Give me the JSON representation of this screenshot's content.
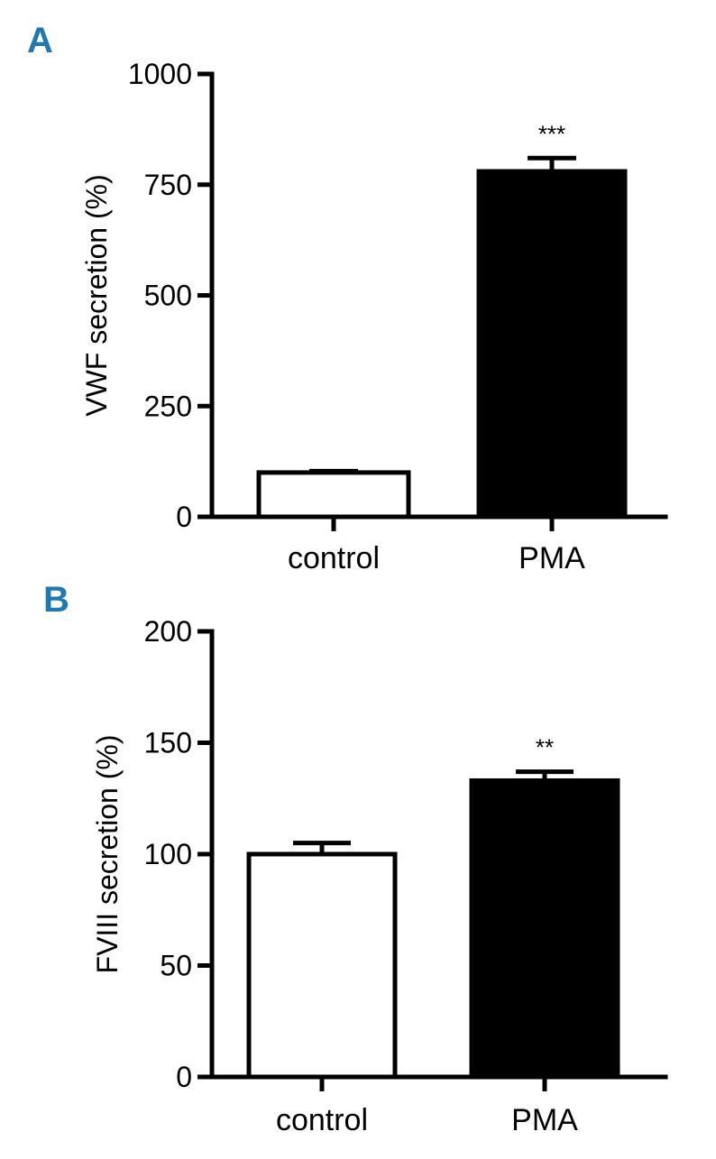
{
  "colors": {
    "panel_letter": "#1f77b4",
    "axis": "#000000",
    "control_fill": "#ffffff",
    "pma_fill": "#000000"
  },
  "chart_data": [
    {
      "panel": "A",
      "type": "bar",
      "title": "",
      "ylabel": "VWF secretion (%)",
      "xlabel": "",
      "categories": [
        "control",
        "PMA"
      ],
      "values": [
        100,
        780
      ],
      "errors": [
        3,
        30
      ],
      "significance": [
        "",
        "***"
      ],
      "fills": [
        "#ffffff",
        "#000000"
      ],
      "ylim": [
        0,
        1000
      ],
      "yticks": [
        0,
        250,
        500,
        750,
        1000
      ],
      "ytick_labels": [
        "0",
        "250",
        "500",
        "750",
        "1000"
      ],
      "grid": false
    },
    {
      "panel": "B",
      "type": "bar",
      "title": "",
      "ylabel": "FVIII secretion (%)",
      "xlabel": "",
      "categories": [
        "control",
        "PMA"
      ],
      "values": [
        100,
        133
      ],
      "errors": [
        5,
        4
      ],
      "significance": [
        "",
        "**"
      ],
      "fills": [
        "#ffffff",
        "#000000"
      ],
      "ylim": [
        0,
        200
      ],
      "yticks": [
        0,
        50,
        100,
        150,
        200
      ],
      "ytick_labels": [
        "0",
        "50",
        "100",
        "150",
        "200"
      ],
      "grid": false
    }
  ]
}
